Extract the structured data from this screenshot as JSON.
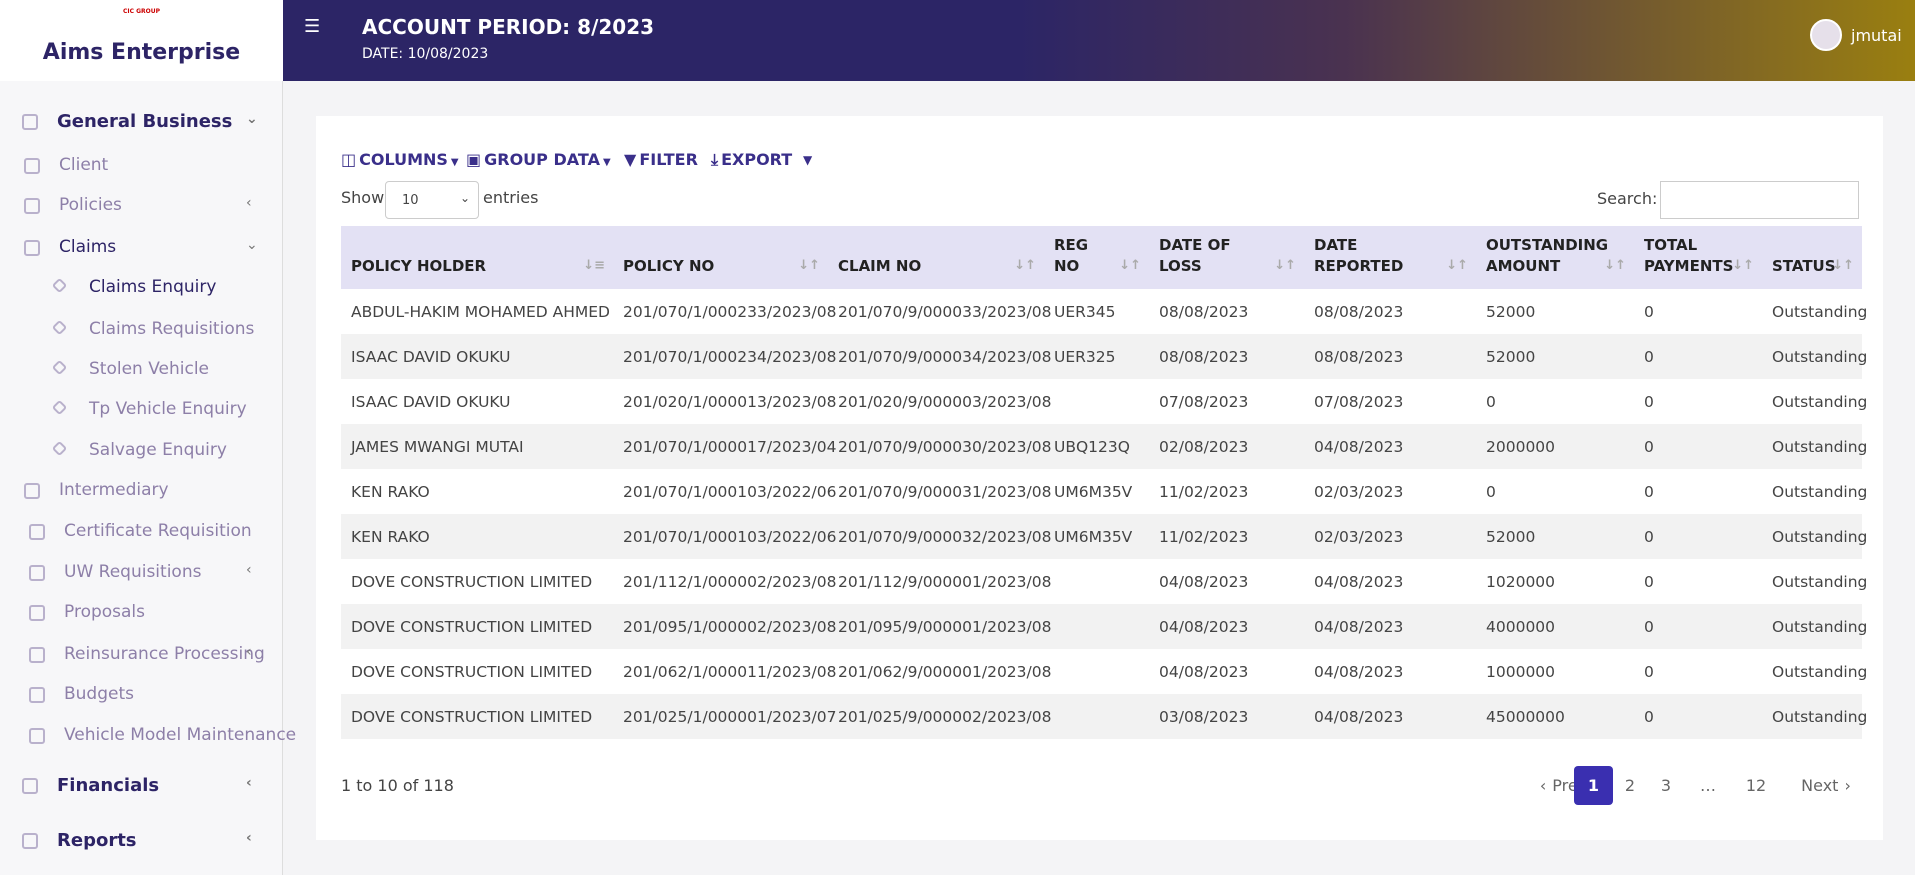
{
  "sidebar": {
    "logo": "CIC GROUP",
    "brand": "Aims Enterprise",
    "menu": [
      "General Business",
      "Client",
      "Policies",
      "Claims",
      "Claims Enquiry",
      "Claims Requisitions",
      "Stolen Vehicle",
      "Tp Vehicle Enquiry",
      "Salvage Enquiry",
      "Intermediary",
      "Certificate Requisition",
      "UW Requisitions",
      "Proposals",
      "Reinsurance Processing",
      "Budgets",
      "Vehicle Model Maintenance",
      "Financials",
      "Reports"
    ]
  },
  "header": {
    "title": "ACCOUNT PERIOD: 8/2023",
    "date": "DATE: 10/08/2023",
    "user": "jmutai"
  },
  "toolbar": {
    "buttons": [
      "COLUMNS",
      "GROUP DATA",
      "FILTER",
      "EXPORT"
    ],
    "show": "Show",
    "page_length": "10",
    "entries": "entries",
    "search": "Search:"
  },
  "table": {
    "columns": [
      "POLICY HOLDER",
      "POLICY NO",
      "CLAIM NO",
      "REG NO",
      "DATE OF LOSS",
      "DATE REPORTED",
      "OUTSTANDING AMOUNT",
      "TOTAL PAYMENTS",
      "STATUS"
    ],
    "rows": [
      [
        "ABDUL-HAKIM MOHAMED AHMED",
        "201/070/1/000233/2023/08",
        "201/070/9/000033/2023/08",
        "UER345",
        "08/08/2023",
        "08/08/2023",
        "52000",
        "0",
        "Outstanding"
      ],
      [
        "ISAAC DAVID OKUKU",
        "201/070/1/000234/2023/08",
        "201/070/9/000034/2023/08",
        "UER325",
        "08/08/2023",
        "08/08/2023",
        "52000",
        "0",
        "Outstanding"
      ],
      [
        "ISAAC DAVID OKUKU",
        "201/020/1/000013/2023/08",
        "201/020/9/000003/2023/08",
        null,
        "07/08/2023",
        "07/08/2023",
        "0",
        "0",
        "Outstanding"
      ],
      [
        "JAMES MWANGI MUTAI",
        "201/070/1/000017/2023/04",
        "201/070/9/000030/2023/08",
        "UBQ123Q",
        "02/08/2023",
        "04/08/2023",
        "2000000",
        "0",
        "Outstanding"
      ],
      [
        "KEN RAKO",
        "201/070/1/000103/2022/06",
        "201/070/9/000031/2023/08",
        "UM6M35V",
        "11/02/2023",
        "02/03/2023",
        "0",
        "0",
        "Outstanding"
      ],
      [
        "KEN RAKO",
        "201/070/1/000103/2022/06",
        "201/070/9/000032/2023/08",
        "UM6M35V",
        "11/02/2023",
        "02/03/2023",
        "52000",
        "0",
        "Outstanding"
      ],
      [
        "DOVE CONSTRUCTION LIMITED",
        "201/112/1/000002/2023/08",
        "201/112/9/000001/2023/08",
        null,
        "04/08/2023",
        "04/08/2023",
        "1020000",
        "0",
        "Outstanding"
      ],
      [
        "DOVE CONSTRUCTION LIMITED",
        "201/095/1/000002/2023/08",
        "201/095/9/000001/2023/08",
        null,
        "04/08/2023",
        "04/08/2023",
        "4000000",
        "0",
        "Outstanding"
      ],
      [
        "DOVE CONSTRUCTION LIMITED",
        "201/062/1/000011/2023/08",
        "201/062/9/000001/2023/08",
        null,
        "04/08/2023",
        "04/08/2023",
        "1000000",
        "0",
        "Outstanding"
      ],
      [
        "DOVE CONSTRUCTION LIMITED",
        "201/025/1/000001/2023/07",
        "201/025/9/000002/2023/08",
        null,
        "03/08/2023",
        "04/08/2023",
        "45000000",
        "0",
        "Outstanding"
      ]
    ]
  },
  "footer": {
    "info": "1 to 10 of 118",
    "pagination": [
      "Prev",
      "1",
      "2",
      "3",
      "…",
      "12",
      "Next"
    ]
  }
}
